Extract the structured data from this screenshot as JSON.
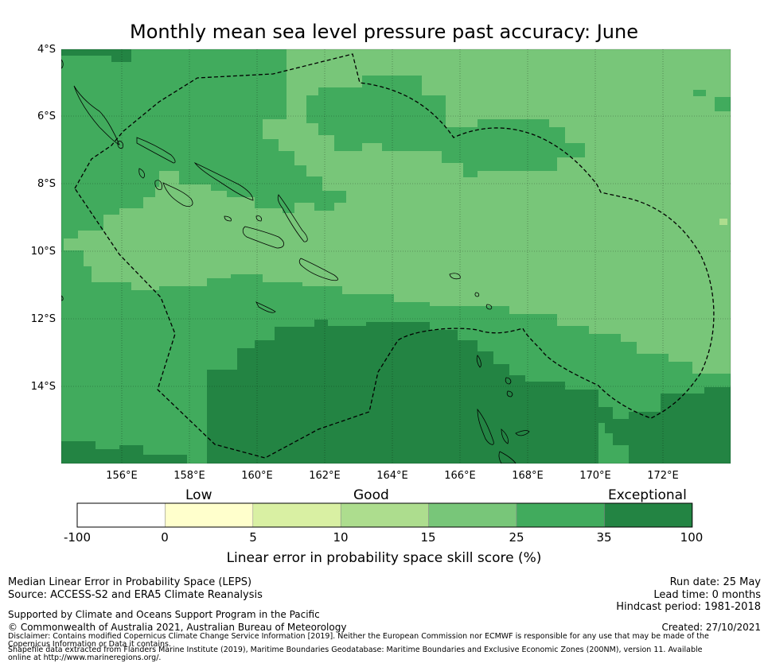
{
  "title": "Monthly mean sea level pressure past accuracy: June",
  "map": {
    "lat_labels": [
      "4°S",
      "6°S",
      "8°S",
      "10°S",
      "12°S",
      "14°S"
    ],
    "lon_labels": [
      "156°E",
      "158°E",
      "160°E",
      "162°E",
      "164°E",
      "166°E",
      "168°E",
      "170°E",
      "172°E"
    ],
    "lat_range": [
      -16.3,
      -4.0
    ],
    "lon_range": [
      154.2,
      174.0
    ]
  },
  "colorbar": {
    "categories": [
      {
        "label": "Low"
      },
      {
        "label": "Good"
      },
      {
        "label": "Exceptional"
      }
    ],
    "ticks": [
      "-100",
      "0",
      "5",
      "10",
      "15",
      "25",
      "35",
      "100"
    ],
    "colors": [
      "#ffffff",
      "#ffffcc",
      "#d9f0a3",
      "#addd8e",
      "#78c679",
      "#41ab5d",
      "#238443"
    ],
    "label": "Linear error in probability space skill score (%)"
  },
  "footer": {
    "left1": "Median Linear Error in Probability Space (LEPS)",
    "left2": "Source: ACCESS-S2 and ERA5 Climate Reanalysis",
    "right1": "Run date: 25 May",
    "right2": "Lead time: 0 months",
    "right3": "Hindcast period: 1981-2018",
    "support": "Supported by Climate and Oceans Support Program in the Pacific",
    "copyright": "© Commonwealth of Australia 2021, Australian Bureau of Meteorology",
    "created": "Created: 27/10/2021",
    "disclaimer": "Disclaimer: Contains modified Copernicus Climate Change Service Information [2019]. Neither the European Commission nor ECMWF is responsible for any use that may be made of the Copernicus Information or Data it contains.",
    "shapefile": "Shapefile data extracted from Flanders Marine Institute (2019), Maritime Boundaries Geodatabase: Maritime Boundaries and Exclusive Economic Zones (200NM), version 11. Available online at http://www.marineregions.org/."
  }
}
